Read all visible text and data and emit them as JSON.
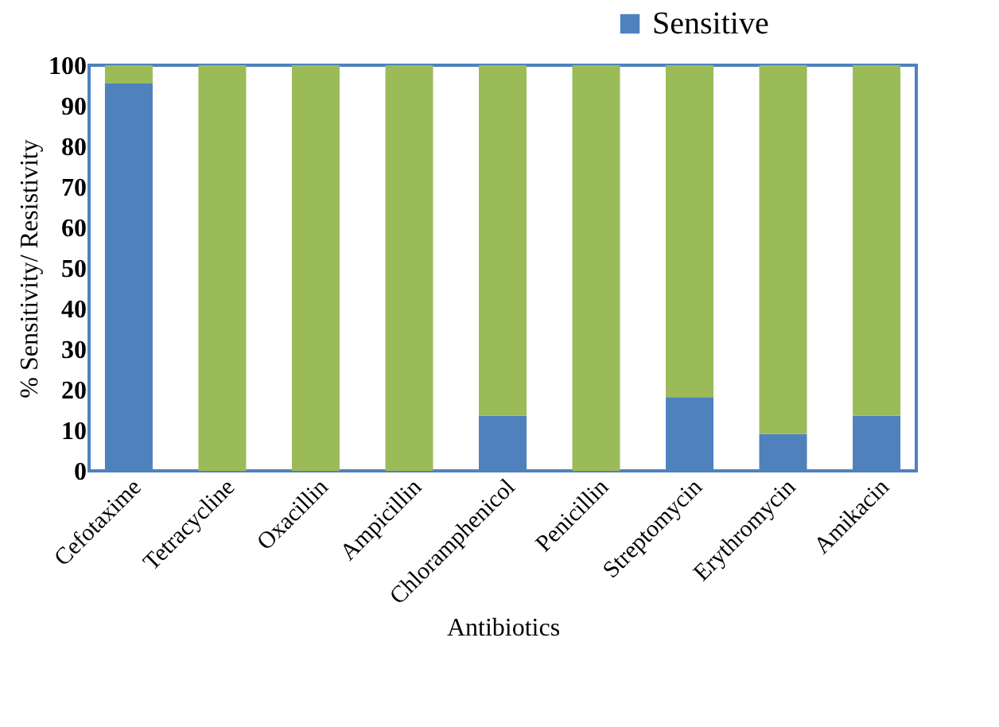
{
  "chart_data": {
    "type": "bar",
    "stacked": true,
    "xlabel": "Antibiotics",
    "ylabel": "% Sensitivity/ Resistivity",
    "categories": [
      "Cefotaxime",
      "Tetracycline",
      "Oxacillin",
      "Ampicillin",
      "Chloramphenicol",
      "Penicillin",
      "Streptomycin",
      "Erythromycin",
      "Amikacin"
    ],
    "series": [
      {
        "name": "Sensitive",
        "color": "#4f81bd",
        "values": [
          95.5,
          0,
          0,
          0,
          13.6,
          0,
          18.2,
          9.1,
          13.6
        ]
      },
      {
        "color": "#9bbb59",
        "values": [
          4.5,
          100,
          100,
          100,
          86.4,
          100,
          81.8,
          90.9,
          86.4
        ]
      }
    ],
    "ylim": [
      0,
      100
    ],
    "yticks": [
      0,
      10,
      20,
      30,
      40,
      50,
      60,
      70,
      80,
      90,
      100
    ],
    "grid": false,
    "legend": "top right"
  }
}
